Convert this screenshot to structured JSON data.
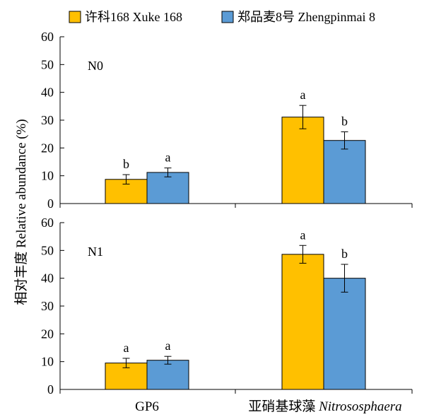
{
  "legend": [
    {
      "name": "许科168 Xuke 168",
      "color": "#FFC000"
    },
    {
      "name": "郑品麦8号 Zhengpinmai 8",
      "color": "#5B9BD5"
    }
  ],
  "ylabel": "相对丰度 Relative abundance (%)",
  "categories": [
    {
      "main": "GP6",
      "italic": ""
    },
    {
      "main": "亚硝基球藻 ",
      "italic": "Nitrososphaera"
    }
  ],
  "chart_data": [
    {
      "type": "bar",
      "panel_label": "N0",
      "categories": [
        "GP6",
        "亚硝基球藻 Nitrososphaera"
      ],
      "ylim": [
        0,
        60
      ],
      "yticks": [
        0,
        10,
        20,
        30,
        40,
        50,
        60
      ],
      "series": [
        {
          "name": "许科168 Xuke 168",
          "values": [
            8.7,
            31.1
          ],
          "errors": [
            1.7,
            4.2
          ],
          "letters": [
            "b",
            "a"
          ]
        },
        {
          "name": "郑品麦8号 Zhengpinmai 8",
          "values": [
            11.2,
            22.7
          ],
          "errors": [
            1.6,
            3.1
          ],
          "letters": [
            "a",
            "b"
          ]
        }
      ]
    },
    {
      "type": "bar",
      "panel_label": "N1",
      "categories": [
        "GP6",
        "亚硝基球藻 Nitrososphaera"
      ],
      "ylim": [
        0,
        60
      ],
      "yticks": [
        0,
        10,
        20,
        30,
        40,
        50,
        60
      ],
      "series": [
        {
          "name": "许科168 Xuke 168",
          "values": [
            9.5,
            48.6
          ],
          "errors": [
            1.7,
            3.2
          ],
          "letters": [
            "a",
            "a"
          ]
        },
        {
          "name": "郑品麦8号 Zhengpinmai 8",
          "values": [
            10.5,
            40.0
          ],
          "errors": [
            1.4,
            5.0
          ],
          "letters": [
            "a",
            "b"
          ]
        }
      ]
    }
  ]
}
